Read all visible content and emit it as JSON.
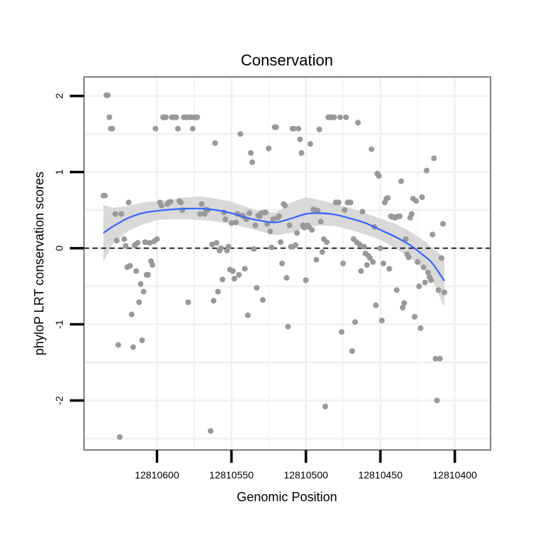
{
  "chart_data": {
    "type": "scatter",
    "title": "Conservation",
    "xlabel": "Genomic Position",
    "ylabel": "phyloP LRT conservation scores",
    "x_reversed": true,
    "xlim": [
      12810649,
      12810376
    ],
    "ylim": [
      -2.65,
      2.25
    ],
    "x_ticks": [
      12810600,
      12810550,
      12810500,
      12810450,
      12810400
    ],
    "x_tick_labels": [
      "12810600",
      "12810550",
      "12810500",
      "12810450",
      "12810400"
    ],
    "y_ticks": [
      -2,
      -1,
      0,
      1,
      2
    ],
    "y_tick_labels": [
      "-2",
      "-1",
      "0",
      "1",
      "2"
    ],
    "grid": true,
    "reference_line": {
      "y": 0,
      "style": "dashed"
    },
    "colors": {
      "points": "#999999",
      "smooth": "#3366ff",
      "ribbon": "#d9d9d9",
      "grid": "#f2f2f2",
      "frame": "#808080"
    },
    "points": [
      [
        12810636,
        0.69
      ],
      [
        12810635,
        0.69
      ],
      [
        12810634,
        2.01
      ],
      [
        12810633,
        2.01
      ],
      [
        12810632,
        1.72
      ],
      [
        12810631,
        1.57
      ],
      [
        12810630,
        1.57
      ],
      [
        12810628,
        0.45
      ],
      [
        12810627,
        0.1
      ],
      [
        12810626,
        -1.27
      ],
      [
        12810625,
        -2.48
      ],
      [
        12810624,
        0.45
      ],
      [
        12810622,
        0.12
      ],
      [
        12810621,
        0.03
      ],
      [
        12810620,
        -0.25
      ],
      [
        12810619,
        0.6
      ],
      [
        12810618,
        -0.23
      ],
      [
        12810617,
        -0.87
      ],
      [
        12810616,
        -1.3
      ],
      [
        12810615,
        0.04
      ],
      [
        12810614,
        -0.3
      ],
      [
        12810613,
        0.07
      ],
      [
        12810612,
        -0.71
      ],
      [
        12810611,
        -0.47
      ],
      [
        12810610,
        -1.21
      ],
      [
        12810609,
        -0.57
      ],
      [
        12810608,
        0.08
      ],
      [
        12810607,
        -0.35
      ],
      [
        12810606,
        -0.35
      ],
      [
        12810605,
        0.07
      ],
      [
        12810604,
        -0.17
      ],
      [
        12810603,
        -0.22
      ],
      [
        12810602,
        0.09
      ],
      [
        12810601,
        1.57
      ],
      [
        12810600,
        0.12
      ],
      [
        12810598,
        0.6
      ],
      [
        12810597,
        0.56
      ],
      [
        12810596,
        1.72
      ],
      [
        12810595,
        1.72
      ],
      [
        12810594,
        1.72
      ],
      [
        12810593,
        0.58
      ],
      [
        12810592,
        0.6
      ],
      [
        12810591,
        0.61
      ],
      [
        12810590,
        1.72
      ],
      [
        12810589,
        1.72
      ],
      [
        12810588,
        1.72
      ],
      [
        12810587,
        1.72
      ],
      [
        12810586,
        1.57
      ],
      [
        12810585,
        0.62
      ],
      [
        12810584,
        0.6
      ],
      [
        12810583,
        0.5
      ],
      [
        12810582,
        1.72
      ],
      [
        12810581,
        1.72
      ],
      [
        12810580,
        1.72
      ],
      [
        12810579,
        -0.71
      ],
      [
        12810578,
        1.72
      ],
      [
        12810577,
        1.72
      ],
      [
        12810576,
        1.57
      ],
      [
        12810575,
        1.72
      ],
      [
        12810574,
        1.72
      ],
      [
        12810573,
        1.72
      ],
      [
        12810571,
        0.45
      ],
      [
        12810570,
        0.58
      ],
      [
        12810568,
        0.45
      ],
      [
        12810567,
        0.51
      ],
      [
        12810566,
        0.5
      ],
      [
        12810564,
        -2.4
      ],
      [
        12810563,
        0.05
      ],
      [
        12810562,
        -0.69
      ],
      [
        12810561,
        1.38
      ],
      [
        12810560,
        0.07
      ],
      [
        12810559,
        -0.57
      ],
      [
        12810558,
        -0.03
      ],
      [
        12810557,
        0.0
      ],
      [
        12810556,
        -0.41
      ],
      [
        12810555,
        0.47
      ],
      [
        12810554,
        0.38
      ],
      [
        12810553,
        -0.03
      ],
      [
        12810552,
        0.02
      ],
      [
        12810551,
        -0.28
      ],
      [
        12810550,
        0.33
      ],
      [
        12810549,
        -0.3
      ],
      [
        12810548,
        -0.4
      ],
      [
        12810547,
        0.34
      ],
      [
        12810546,
        0.45
      ],
      [
        12810545,
        -0.35
      ],
      [
        12810544,
        1.5
      ],
      [
        12810543,
        0.43
      ],
      [
        12810542,
        0.42
      ],
      [
        12810541,
        -0.27
      ],
      [
        12810540,
        0.38
      ],
      [
        12810539,
        -0.88
      ],
      [
        12810538,
        0.46
      ],
      [
        12810537,
        1.25
      ],
      [
        12810536,
        1.13
      ],
      [
        12810535,
        -0.01
      ],
      [
        12810534,
        0.3
      ],
      [
        12810533,
        -0.52
      ],
      [
        12810532,
        0.43
      ],
      [
        12810531,
        0.42
      ],
      [
        12810530,
        0.46
      ],
      [
        12810529,
        -0.68
      ],
      [
        12810528,
        0.47
      ],
      [
        12810527,
        0.47
      ],
      [
        12810526,
        0.32
      ],
      [
        12810525,
        1.31
      ],
      [
        12810524,
        0.22
      ],
      [
        12810523,
        0.01
      ],
      [
        12810522,
        0.38
      ],
      [
        12810521,
        1.59
      ],
      [
        12810520,
        1.59
      ],
      [
        12810519,
        0.4
      ],
      [
        12810518,
        0.42
      ],
      [
        12810517,
        0.08
      ],
      [
        12810516,
        -0.2
      ],
      [
        12810515,
        0.58
      ],
      [
        12810514,
        0.56
      ],
      [
        12810513,
        -0.39
      ],
      [
        12810512,
        -1.03
      ],
      [
        12810511,
        0.3
      ],
      [
        12810510,
        0.02
      ],
      [
        12810509,
        1.57
      ],
      [
        12810508,
        1.57
      ],
      [
        12810507,
        0.04
      ],
      [
        12810506,
        0.2
      ],
      [
        12810505,
        1.57
      ],
      [
        12810504,
        1.43
      ],
      [
        12810503,
        1.25
      ],
      [
        12810502,
        0.3
      ],
      [
        12810501,
        0.27
      ],
      [
        12810500,
        -0.42
      ],
      [
        12810499,
        0.3
      ],
      [
        12810498,
        0.28
      ],
      [
        12810497,
        1.37
      ],
      [
        12810496,
        0.24
      ],
      [
        12810495,
        0.51
      ],
      [
        12810494,
        0.5
      ],
      [
        12810493,
        -0.15
      ],
      [
        12810492,
        0.49
      ],
      [
        12810491,
        1.56
      ],
      [
        12810490,
        0.35
      ],
      [
        12810489,
        -0.05
      ],
      [
        12810488,
        0.12
      ],
      [
        12810487,
        -2.08
      ],
      [
        12810486,
        0.08
      ],
      [
        12810485,
        1.72
      ],
      [
        12810484,
        1.72
      ],
      [
        12810483,
        1.72
      ],
      [
        12810482,
        1.72
      ],
      [
        12810481,
        1.72
      ],
      [
        12810480,
        0.6
      ],
      [
        12810479,
        0.6
      ],
      [
        12810478,
        0.6
      ],
      [
        12810477,
        1.72
      ],
      [
        12810476,
        -1.1
      ],
      [
        12810475,
        -0.2
      ],
      [
        12810474,
        0.5
      ],
      [
        12810473,
        1.72
      ],
      [
        12810472,
        0.6
      ],
      [
        12810471,
        0.6
      ],
      [
        12810470,
        0.6
      ],
      [
        12810469,
        -1.35
      ],
      [
        12810468,
        0.12
      ],
      [
        12810467,
        -0.97
      ],
      [
        12810466,
        0.08
      ],
      [
        12810465,
        1.65
      ],
      [
        12810464,
        0.05
      ],
      [
        12810463,
        -0.3
      ],
      [
        12810462,
        0.48
      ],
      [
        12810461,
        0.02
      ],
      [
        12810460,
        -0.07
      ],
      [
        12810459,
        -0.22
      ],
      [
        12810458,
        -0.1
      ],
      [
        12810457,
        -0.13
      ],
      [
        12810456,
        1.3
      ],
      [
        12810455,
        -0.18
      ],
      [
        12810454,
        0.28
      ],
      [
        12810453,
        -0.75
      ],
      [
        12810452,
        0.98
      ],
      [
        12810451,
        0.95
      ],
      [
        12810450,
        0.0
      ],
      [
        12810449,
        -0.95
      ],
      [
        12810448,
        -0.2
      ],
      [
        12810447,
        0.6
      ],
      [
        12810446,
        0.65
      ],
      [
        12810445,
        0.66
      ],
      [
        12810444,
        -0.27
      ],
      [
        12810443,
        0.42
      ],
      [
        12810442,
        0.41
      ],
      [
        12810441,
        0.41
      ],
      [
        12810440,
        0.4
      ],
      [
        12810439,
        -0.55
      ],
      [
        12810438,
        0.42
      ],
      [
        12810437,
        0.42
      ],
      [
        12810436,
        0.88
      ],
      [
        12810435,
        -0.78
      ],
      [
        12810434,
        -0.72
      ],
      [
        12810433,
        0.12
      ],
      [
        12810432,
        -0.08
      ],
      [
        12810431,
        -0.12
      ],
      [
        12810430,
        0.4
      ],
      [
        12810429,
        0.45
      ],
      [
        12810428,
        0.65
      ],
      [
        12810427,
        -0.9
      ],
      [
        12810426,
        0.62
      ],
      [
        12810425,
        -0.18
      ],
      [
        12810424,
        -0.5
      ],
      [
        12810423,
        -1.05
      ],
      [
        12810422,
        0.67
      ],
      [
        12810421,
        -0.25
      ],
      [
        12810420,
        -0.45
      ],
      [
        12810419,
        1.02
      ],
      [
        12810418,
        -0.32
      ],
      [
        12810417,
        -0.38
      ],
      [
        12810416,
        -0.42
      ],
      [
        12810415,
        0.18
      ],
      [
        12810414,
        1.18
      ],
      [
        12810413,
        -1.45
      ],
      [
        12810412,
        -2.0
      ],
      [
        12810411,
        -0.55
      ],
      [
        12810410,
        -1.45
      ],
      [
        12810409,
        -0.13
      ],
      [
        12810408,
        0.32
      ],
      [
        12810407,
        -0.58
      ]
    ],
    "smooth_line": [
      [
        12810636,
        0.2
      ],
      [
        12810630,
        0.28
      ],
      [
        12810620,
        0.39
      ],
      [
        12810610,
        0.46
      ],
      [
        12810600,
        0.49
      ],
      [
        12810590,
        0.51
      ],
      [
        12810580,
        0.52
      ],
      [
        12810570,
        0.52
      ],
      [
        12810560,
        0.5
      ],
      [
        12810550,
        0.46
      ],
      [
        12810540,
        0.4
      ],
      [
        12810530,
        0.36
      ],
      [
        12810520,
        0.34
      ],
      [
        12810510,
        0.39
      ],
      [
        12810500,
        0.45
      ],
      [
        12810490,
        0.46
      ],
      [
        12810480,
        0.44
      ],
      [
        12810470,
        0.39
      ],
      [
        12810460,
        0.33
      ],
      [
        12810450,
        0.24
      ],
      [
        12810440,
        0.15
      ],
      [
        12810430,
        0.04
      ],
      [
        12810420,
        -0.11
      ],
      [
        12810415,
        -0.2
      ],
      [
        12810407,
        -0.43
      ]
    ],
    "ribbon_upper": [
      [
        12810636,
        0.57
      ],
      [
        12810630,
        0.53
      ],
      [
        12810620,
        0.55
      ],
      [
        12810610,
        0.6
      ],
      [
        12810600,
        0.62
      ],
      [
        12810590,
        0.64
      ],
      [
        12810580,
        0.67
      ],
      [
        12810570,
        0.68
      ],
      [
        12810560,
        0.65
      ],
      [
        12810550,
        0.61
      ],
      [
        12810540,
        0.54
      ],
      [
        12810530,
        0.48
      ],
      [
        12810520,
        0.47
      ],
      [
        12810510,
        0.6
      ],
      [
        12810500,
        0.67
      ],
      [
        12810490,
        0.63
      ],
      [
        12810480,
        0.58
      ],
      [
        12810470,
        0.53
      ],
      [
        12810460,
        0.46
      ],
      [
        12810450,
        0.39
      ],
      [
        12810440,
        0.32
      ],
      [
        12810430,
        0.22
      ],
      [
        12810420,
        0.09
      ],
      [
        12810415,
        0.0
      ],
      [
        12810407,
        -0.12
      ]
    ],
    "ribbon_lower": [
      [
        12810636,
        -0.18
      ],
      [
        12810630,
        0.05
      ],
      [
        12810620,
        0.22
      ],
      [
        12810610,
        0.31
      ],
      [
        12810600,
        0.37
      ],
      [
        12810590,
        0.38
      ],
      [
        12810580,
        0.38
      ],
      [
        12810570,
        0.37
      ],
      [
        12810560,
        0.35
      ],
      [
        12810550,
        0.32
      ],
      [
        12810540,
        0.27
      ],
      [
        12810530,
        0.22
      ],
      [
        12810520,
        0.17
      ],
      [
        12810510,
        0.2
      ],
      [
        12810500,
        0.27
      ],
      [
        12810490,
        0.3
      ],
      [
        12810480,
        0.29
      ],
      [
        12810470,
        0.24
      ],
      [
        12810460,
        0.18
      ],
      [
        12810450,
        0.11
      ],
      [
        12810440,
        0.0
      ],
      [
        12810430,
        -0.12
      ],
      [
        12810420,
        -0.3
      ],
      [
        12810415,
        -0.42
      ],
      [
        12810407,
        -0.78
      ]
    ]
  }
}
